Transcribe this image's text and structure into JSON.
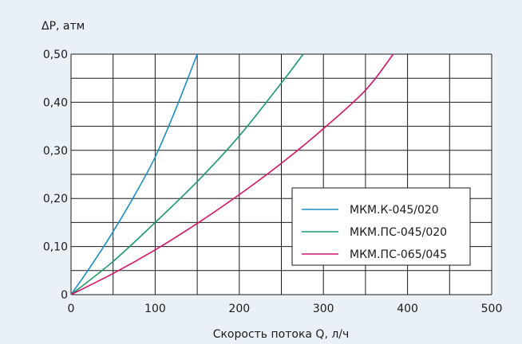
{
  "chart_data": {
    "type": "line",
    "title": "",
    "xlabel": "Скорость потока Q, л/ч",
    "ylabel": "ΔP, атм",
    "xlim": [
      0,
      500
    ],
    "ylim": [
      0,
      0.5
    ],
    "xticks": [
      0,
      50,
      100,
      150,
      200,
      250,
      300,
      350,
      400,
      450,
      500
    ],
    "xtick_labels": [
      "0",
      "",
      "100",
      "",
      "200",
      "",
      "300",
      "",
      "400",
      "",
      "500"
    ],
    "yticks": [
      0,
      0.05,
      0.1,
      0.15,
      0.2,
      0.25,
      0.3,
      0.35,
      0.4,
      0.45,
      0.5
    ],
    "ytick_labels": [
      "0",
      "",
      "0,10",
      "",
      "0,20",
      "",
      "0,30",
      "",
      "0,40",
      "",
      "0,50"
    ],
    "grid": true,
    "legend_position": "center-right",
    "series": [
      {
        "name": "МКМ.К-045/020",
        "color": "#1a8fc6",
        "x": [
          0,
          25,
          50,
          75,
          100,
          125,
          150
        ],
        "y": [
          0,
          0.063,
          0.131,
          0.205,
          0.286,
          0.388,
          0.5
        ]
      },
      {
        "name": "МКМ.ПС-045/020",
        "color": "#1a9a6a",
        "x": [
          0,
          50,
          100,
          150,
          200,
          250,
          276
        ],
        "y": [
          0,
          0.069,
          0.15,
          0.235,
          0.33,
          0.44,
          0.5
        ]
      },
      {
        "name": "МКМ.ПС-065/045",
        "color": "#d4146b",
        "x": [
          0,
          50,
          100,
          150,
          200,
          250,
          300,
          350,
          383
        ],
        "y": [
          0,
          0.044,
          0.093,
          0.148,
          0.208,
          0.273,
          0.345,
          0.425,
          0.5
        ]
      }
    ]
  }
}
